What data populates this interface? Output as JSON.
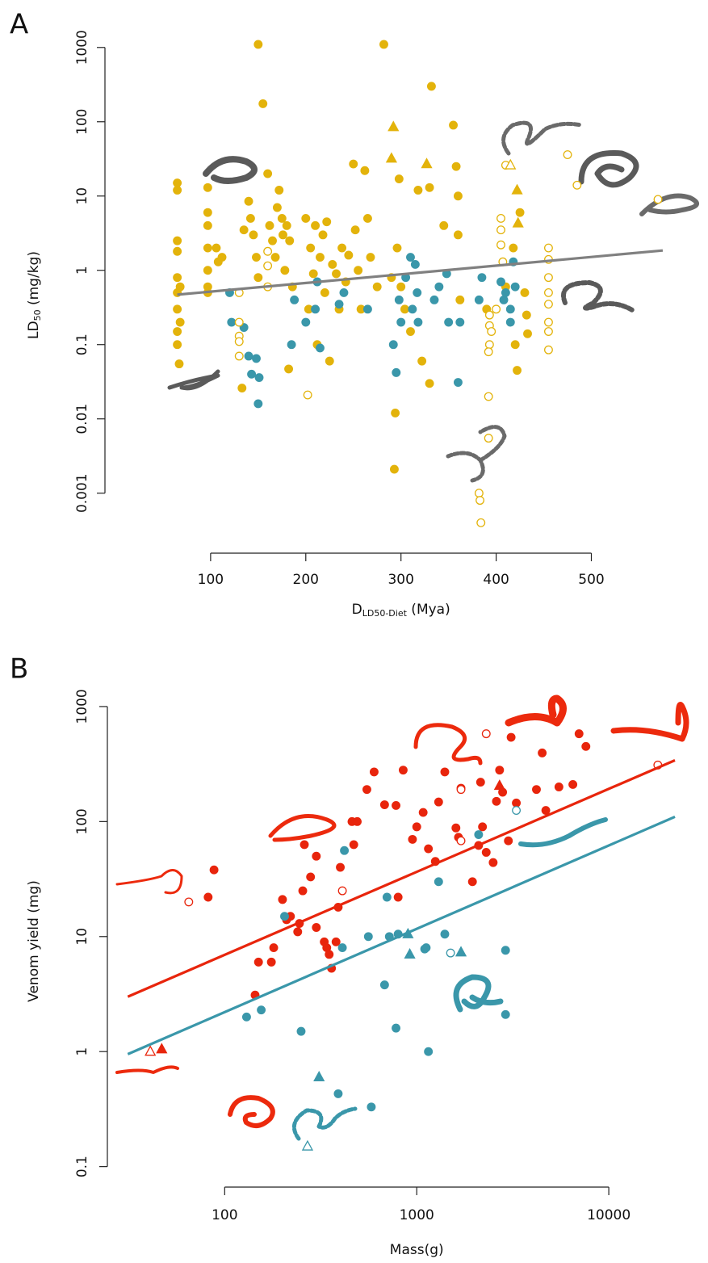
{
  "chart_data": [
    {
      "type": "scatter",
      "panel": "A",
      "ylabel": [
        {
          "text": "LD"
        },
        {
          "text": "50",
          "sub": true
        },
        {
          "text": " (mg/kg)"
        }
      ],
      "xlabel": [
        {
          "text": "D"
        },
        {
          "text": "LD50-Diet",
          "sub": true
        },
        {
          "text": " (Mya)"
        }
      ],
      "xscale": "linear",
      "yscale": "log",
      "xlim": [
        -11,
        620
      ],
      "ylim": [
        0.0002,
        1600
      ],
      "xticks": [
        100,
        200,
        300,
        400,
        500
      ],
      "yticks": [
        1000,
        100,
        10,
        1,
        0.1,
        0.01,
        0.001
      ],
      "lines": [
        {
          "color": "#808080",
          "x": [
            65,
            575
          ],
          "values": [
            0.47,
            1.85
          ]
        }
      ],
      "series": [
        {
          "color": "#e3b30b",
          "marker": "circle",
          "filled": true,
          "x": [
            65,
            65,
            65,
            65,
            65,
            65,
            65,
            65,
            65,
            67,
            68,
            68,
            97,
            97,
            97,
            97,
            97,
            97,
            97,
            106,
            108,
            112,
            135,
            140,
            142,
            145,
            148,
            150,
            133,
            160,
            162,
            165,
            168,
            170,
            172,
            175,
            176,
            178,
            180,
            182,
            183,
            186,
            200,
            203,
            205,
            208,
            210,
            212,
            215,
            218,
            220,
            225,
            222,
            228,
            232,
            235,
            238,
            242,
            245,
            250,
            252,
            255,
            258,
            262,
            265,
            268,
            275,
            290,
            293,
            294,
            296,
            298,
            300,
            304,
            310,
            318,
            322,
            330,
            332,
            330,
            345,
            355,
            358,
            360,
            362,
            360,
            282,
            150,
            155,
            390,
            410,
            418,
            420,
            422,
            425,
            430,
            432,
            433
          ],
          "values": [
            15,
            12,
            2.5,
            1.8,
            0.8,
            0.5,
            0.3,
            0.15,
            0.1,
            0.055,
            0.6,
            0.2,
            13,
            6,
            4,
            2,
            1,
            0.6,
            0.5,
            2,
            1.3,
            1.5,
            3.5,
            8.5,
            5,
            3,
            1.5,
            0.8,
            0.026,
            20,
            4,
            2.5,
            1.5,
            7,
            12,
            5,
            3,
            1,
            4,
            0.047,
            2.5,
            0.6,
            5,
            0.3,
            2,
            0.9,
            4,
            0.1,
            1.5,
            3,
            0.5,
            0.06,
            4.5,
            1.2,
            0.9,
            0.3,
            2,
            0.7,
            1.6,
            27,
            3.5,
            1,
            0.3,
            22,
            5,
            1.5,
            0.6,
            0.8,
            0.0021,
            0.012,
            2,
            17,
            0.6,
            0.3,
            0.15,
            12,
            0.06,
            0.03,
            300,
            13,
            4,
            90,
            25,
            3,
            0.4,
            10,
            1100,
            1100,
            175,
            0.3,
            0.6,
            2,
            0.1,
            0.045,
            6,
            0.5,
            0.25,
            0.14
          ]
        },
        {
          "color": "#3a97aa",
          "marker": "circle",
          "filled": true,
          "x": [
            120,
            122,
            135,
            140,
            143,
            148,
            151,
            150,
            185,
            188,
            200,
            210,
            212,
            215,
            235,
            240,
            265,
            292,
            295,
            298,
            300,
            305,
            310,
            312,
            315,
            317,
            318,
            335,
            340,
            348,
            350,
            360,
            362,
            382,
            385,
            405,
            408,
            410,
            415,
            415,
            418,
            420
          ],
          "values": [
            0.5,
            0.2,
            0.17,
            0.07,
            0.04,
            0.065,
            0.036,
            0.016,
            0.1,
            0.4,
            0.2,
            0.3,
            0.7,
            0.09,
            0.35,
            0.5,
            0.3,
            0.1,
            0.042,
            0.4,
            0.2,
            0.8,
            1.5,
            0.3,
            1.2,
            0.5,
            0.2,
            0.4,
            0.6,
            0.9,
            0.2,
            0.031,
            0.2,
            0.4,
            0.8,
            0.7,
            0.4,
            0.5,
            0.3,
            0.2,
            1.3,
            0.6
          ]
        },
        {
          "color": "#e3b30b",
          "marker": "circle",
          "filled": false,
          "x": [
            130,
            130,
            130,
            130,
            130,
            160,
            160,
            160,
            202,
            382,
            383,
            384,
            392,
            393,
            393,
            393,
            392,
            392,
            395,
            400,
            405,
            405,
            405,
            407,
            410,
            455,
            455,
            455,
            455,
            455,
            455,
            455,
            455,
            475,
            485,
            570
          ],
          "values": [
            0.5,
            0.2,
            0.13,
            0.07,
            0.11,
            1.8,
            1.15,
            0.6,
            0.021,
            0.001,
            0.0008,
            0.0004,
            0.0055,
            0.25,
            0.18,
            0.1,
            0.08,
            0.02,
            0.15,
            0.3,
            5,
            3.5,
            2.2,
            1.3,
            26,
            2,
            1.4,
            0.8,
            0.5,
            0.35,
            0.2,
            0.15,
            0.085,
            36,
            14,
            9
          ]
        },
        {
          "color": "#e3b30b",
          "marker": "triangle",
          "filled": true,
          "x": [
            292,
            290,
            327,
            422,
            423
          ],
          "values": [
            85,
            32,
            27,
            12,
            4.3
          ]
        },
        {
          "color": "#e3b30b",
          "marker": "triangle",
          "filled": false,
          "x": [
            415
          ],
          "values": [
            26
          ]
        }
      ]
    },
    {
      "type": "scatter",
      "panel": "B",
      "ylabel": [
        {
          "text": "Venom yield (mg)"
        }
      ],
      "xlabel": [
        {
          "text": "Mass(g)"
        }
      ],
      "xscale": "log",
      "yscale": "log",
      "xlim": [
        24.5,
        30700
      ],
      "ylim": [
        0.078,
        1380
      ],
      "xticks": [
        100,
        1000,
        10000
      ],
      "yticks": [
        1000,
        100,
        10,
        1,
        0.1
      ],
      "lines": [
        {
          "color": "#e8250c",
          "x": [
            31.3,
            22100
          ],
          "values": [
            3.0,
            341
          ]
        },
        {
          "color": "#3a97aa",
          "x": [
            31.3,
            22100
          ],
          "values": [
            0.95,
            110
          ]
        }
      ],
      "series": [
        {
          "color": "#e8250c",
          "marker": "circle",
          "filled": true,
          "x": [
            82,
            88,
            144,
            150,
            175,
            180,
            200,
            210,
            220,
            240,
            245,
            255,
            260,
            280,
            300,
            300,
            330,
            340,
            350,
            360,
            380,
            390,
            400,
            460,
            470,
            490,
            550,
            600,
            680,
            800,
            780,
            850,
            950,
            1000,
            1080,
            1150,
            1250,
            1300,
            1400,
            1600,
            1650,
            1700,
            1950,
            2100,
            2150,
            2200,
            2300,
            2500,
            2600,
            2700,
            3000,
            3100,
            3300,
            4200,
            4500,
            4700,
            5500,
            6500,
            7000,
            7600,
            2800
          ],
          "values": [
            22,
            38,
            3.1,
            6,
            6,
            8,
            21,
            14,
            15,
            11,
            13,
            25,
            63,
            33,
            12,
            50,
            9,
            8,
            7,
            5.3,
            9,
            18,
            40,
            100,
            63,
            100,
            190,
            270,
            140,
            22,
            138,
            280,
            70,
            90,
            120,
            58,
            45,
            148,
            270,
            88,
            73,
            195,
            30,
            62,
            220,
            90,
            54,
            44,
            150,
            280,
            68,
            540,
            145,
            190,
            395,
            125,
            200,
            210,
            580,
            450,
            180
          ]
        },
        {
          "color": "#e8250c",
          "marker": "circle",
          "filled": false,
          "x": [
            65,
            410,
            1700,
            1700,
            2300,
            18000
          ],
          "values": [
            20,
            25,
            190,
            68,
            580,
            310
          ]
        },
        {
          "color": "#e8250c",
          "marker": "triangle",
          "filled": true,
          "x": [
            47,
            2700
          ],
          "values": [
            1.05,
            205
          ]
        },
        {
          "color": "#e8250c",
          "marker": "triangle",
          "filled": false,
          "x": [
            41
          ],
          "values": [
            1.0
          ]
        },
        {
          "color": "#3a97aa",
          "marker": "circle",
          "filled": true,
          "x": [
            130,
            155,
            205,
            250,
            390,
            410,
            420,
            560,
            680,
            700,
            720,
            800,
            780,
            1100,
            1120,
            1150,
            1300,
            1400,
            2100,
            2900,
            2900,
            580
          ],
          "values": [
            2,
            2.3,
            15,
            1.5,
            0.43,
            8,
            56,
            10,
            3.8,
            22,
            10,
            10.5,
            1.6,
            7.8,
            8,
            1.0,
            30,
            10.5,
            77,
            2.1,
            7.6,
            0.33
          ]
        },
        {
          "color": "#3a97aa",
          "marker": "circle",
          "filled": false,
          "x": [
            1500,
            3300
          ],
          "values": [
            7.2,
            125
          ]
        },
        {
          "color": "#3a97aa",
          "marker": "triangle",
          "filled": true,
          "x": [
            310,
            900,
            920,
            1700
          ],
          "values": [
            0.6,
            10.5,
            7.0,
            7.3
          ]
        },
        {
          "color": "#3a97aa",
          "marker": "triangle",
          "filled": false,
          "x": [
            270
          ],
          "values": [
            0.15
          ]
        }
      ]
    }
  ]
}
